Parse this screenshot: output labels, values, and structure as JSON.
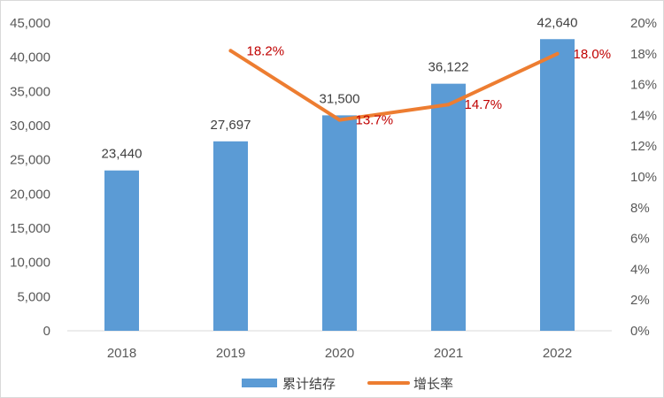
{
  "chart_data": {
    "type": "bar",
    "categories": [
      "2018",
      "2019",
      "2020",
      "2021",
      "2022"
    ],
    "series": [
      {
        "name": "累计结存",
        "type": "bar",
        "axis": "left",
        "color": "#5B9BD5",
        "values": [
          23440,
          27697,
          31500,
          36122,
          42640
        ],
        "labels": [
          "23,440",
          "27,697",
          "31,500",
          "36,122",
          "42,640"
        ]
      },
      {
        "name": "增长率",
        "type": "line",
        "axis": "right",
        "color": "#ED7D31",
        "label_color": "#C00000",
        "values": [
          null,
          18.2,
          13.7,
          14.7,
          18.0
        ],
        "labels": [
          "",
          "18.2%",
          "13.7%",
          "14.7%",
          "18.0%"
        ]
      }
    ],
    "y_left": {
      "ylim": [
        0,
        45000
      ],
      "ticks": [
        "0",
        "5,000",
        "10,000",
        "15,000",
        "20,000",
        "25,000",
        "30,000",
        "35,000",
        "40,000",
        "45,000"
      ]
    },
    "y_right": {
      "ylim": [
        0,
        20
      ],
      "ticks": [
        "0%",
        "2%",
        "4%",
        "6%",
        "8%",
        "10%",
        "12%",
        "14%",
        "16%",
        "18%",
        "20%"
      ]
    },
    "grid": false,
    "legend": "bottom-center"
  }
}
